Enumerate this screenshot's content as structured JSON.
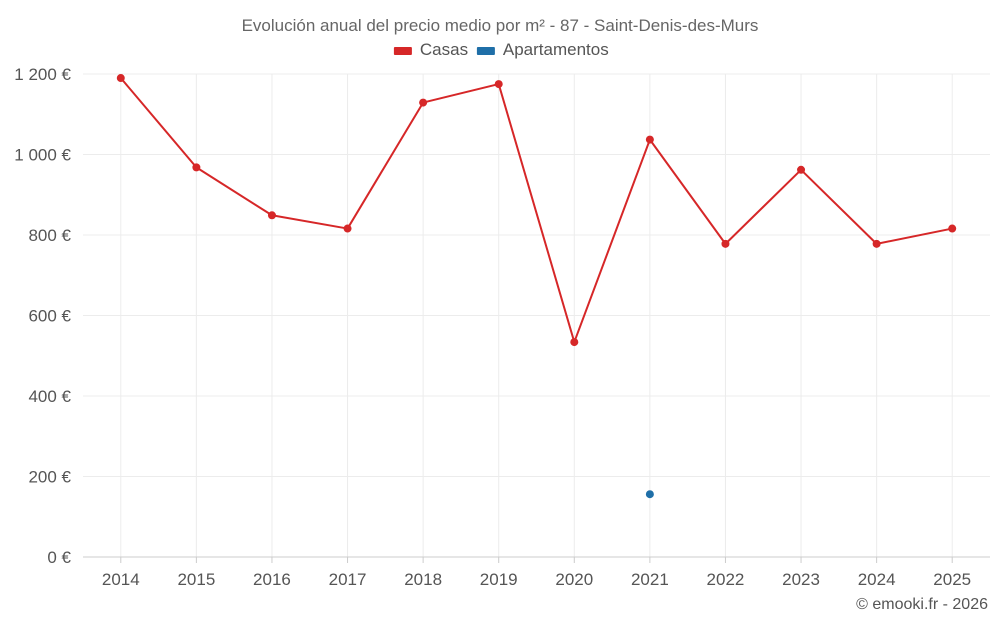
{
  "chart_data": {
    "type": "line",
    "title": "Evolución anual del precio medio por m² - 87 - Saint-Denis-des-Murs",
    "categories": [
      "2014",
      "2015",
      "2016",
      "2017",
      "2018",
      "2019",
      "2020",
      "2021",
      "2022",
      "2023",
      "2024",
      "2025"
    ],
    "series": [
      {
        "name": "Casas",
        "color": "#d62728",
        "values": [
          1190,
          968,
          849,
          816,
          1129,
          1175,
          534,
          1037,
          778,
          962,
          778,
          816
        ]
      },
      {
        "name": "Apartamentos",
        "color": "#1f6fa8",
        "values": [
          null,
          null,
          null,
          null,
          null,
          null,
          null,
          156,
          null,
          null,
          null,
          null
        ]
      }
    ],
    "y_ticks": [
      "0 €",
      "200 €",
      "400 €",
      "600 €",
      "800 €",
      "1 000 €",
      "1 200 €"
    ],
    "y_tick_values": [
      0,
      200,
      400,
      600,
      800,
      1000,
      1200
    ],
    "ylim": [
      0,
      1200
    ],
    "xlabel": "",
    "ylabel": "",
    "grid": true,
    "legend_position": "top-center"
  },
  "credit": "© emooki.fr - 2026"
}
